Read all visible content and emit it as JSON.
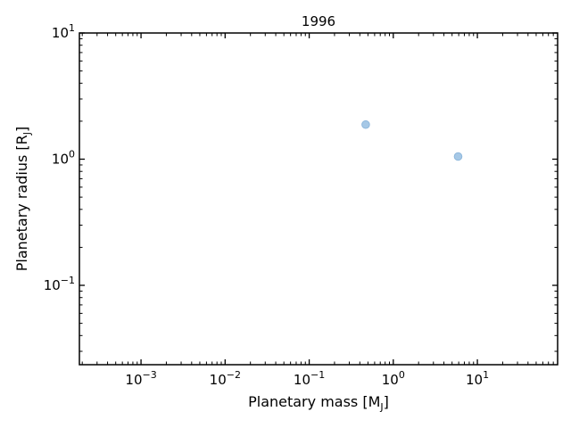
{
  "chart_data": {
    "type": "scatter",
    "title": "1996",
    "xlabel": {
      "main": "Planetary mass [M",
      "sub": "J",
      "close": "]"
    },
    "ylabel": {
      "main": "Planetary radius [R",
      "sub": "J",
      "close": "]"
    },
    "xscale": "log",
    "yscale": "log",
    "xlim": [
      0.000185,
      90
    ],
    "ylim": [
      0.0235,
      10
    ],
    "x_ticks": [
      {
        "value": 0.001,
        "base": "10",
        "exp": "−3"
      },
      {
        "value": 0.01,
        "base": "10",
        "exp": "−2"
      },
      {
        "value": 0.1,
        "base": "10",
        "exp": "−1"
      },
      {
        "value": 1,
        "base": "10",
        "exp": "0"
      },
      {
        "value": 10,
        "base": "10",
        "exp": "1"
      }
    ],
    "y_ticks": [
      {
        "value": 0.1,
        "base": "10",
        "exp": "−1"
      },
      {
        "value": 1,
        "base": "10",
        "exp": "0"
      },
      {
        "value": 10,
        "base": "10",
        "exp": "1"
      }
    ],
    "grid": false,
    "marker_color": "#a6c8e6",
    "marker_edge": "#8fb8dc",
    "points": [
      {
        "x": 0.47,
        "y": 1.88
      },
      {
        "x": 5.9,
        "y": 1.05
      }
    ]
  }
}
